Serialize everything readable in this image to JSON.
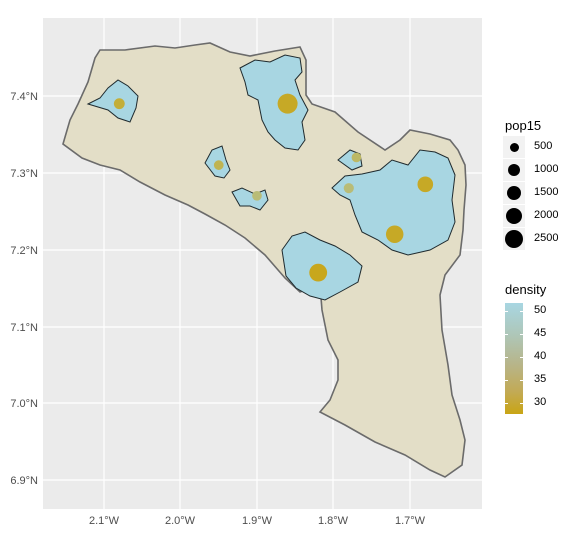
{
  "axes": {
    "x_ticks": [
      "2.1°W",
      "2.0°W",
      "1.9°W",
      "1.8°W",
      "1.7°W"
    ],
    "y_ticks": [
      "7.4°N",
      "7.3°N",
      "7.2°N",
      "7.1°N",
      "7.0°N",
      "6.9°N"
    ]
  },
  "legend_size": {
    "title": "pop15",
    "labels": [
      "500",
      "1000",
      "1500",
      "2000",
      "2500"
    ]
  },
  "legend_color": {
    "title": "density",
    "labels": [
      "50",
      "45",
      "40",
      "35",
      "30"
    ]
  },
  "colors": {
    "panel": "#ebebeb",
    "grid": "#ffffff",
    "district_fill": "#e3dec7",
    "district_stroke": "#6b6b6b",
    "urban_fill": "#a8d6e2",
    "point_color": "#c9a514"
  },
  "chart_data": {
    "type": "scatter",
    "xlabel": "",
    "ylabel": "",
    "xlim": [
      -2.17,
      -1.6
    ],
    "ylim": [
      6.86,
      7.49
    ],
    "points": [
      {
        "lon": -2.08,
        "lat": 7.39,
        "pop15": 400,
        "density": 33
      },
      {
        "lon": -1.86,
        "lat": 7.39,
        "pop15": 2600,
        "density": 31
      },
      {
        "lon": -1.95,
        "lat": 7.31,
        "pop15": 250,
        "density": 36
      },
      {
        "lon": -1.9,
        "lat": 7.27,
        "pop15": 250,
        "density": 40
      },
      {
        "lon": -1.77,
        "lat": 7.32,
        "pop15": 250,
        "density": 38
      },
      {
        "lon": -1.78,
        "lat": 7.28,
        "pop15": 300,
        "density": 40
      },
      {
        "lon": -1.68,
        "lat": 7.285,
        "pop15": 1300,
        "density": 31
      },
      {
        "lon": -1.72,
        "lat": 7.22,
        "pop15": 1800,
        "density": 31
      },
      {
        "lon": -1.82,
        "lat": 7.17,
        "pop15": 1900,
        "density": 30
      }
    ]
  }
}
